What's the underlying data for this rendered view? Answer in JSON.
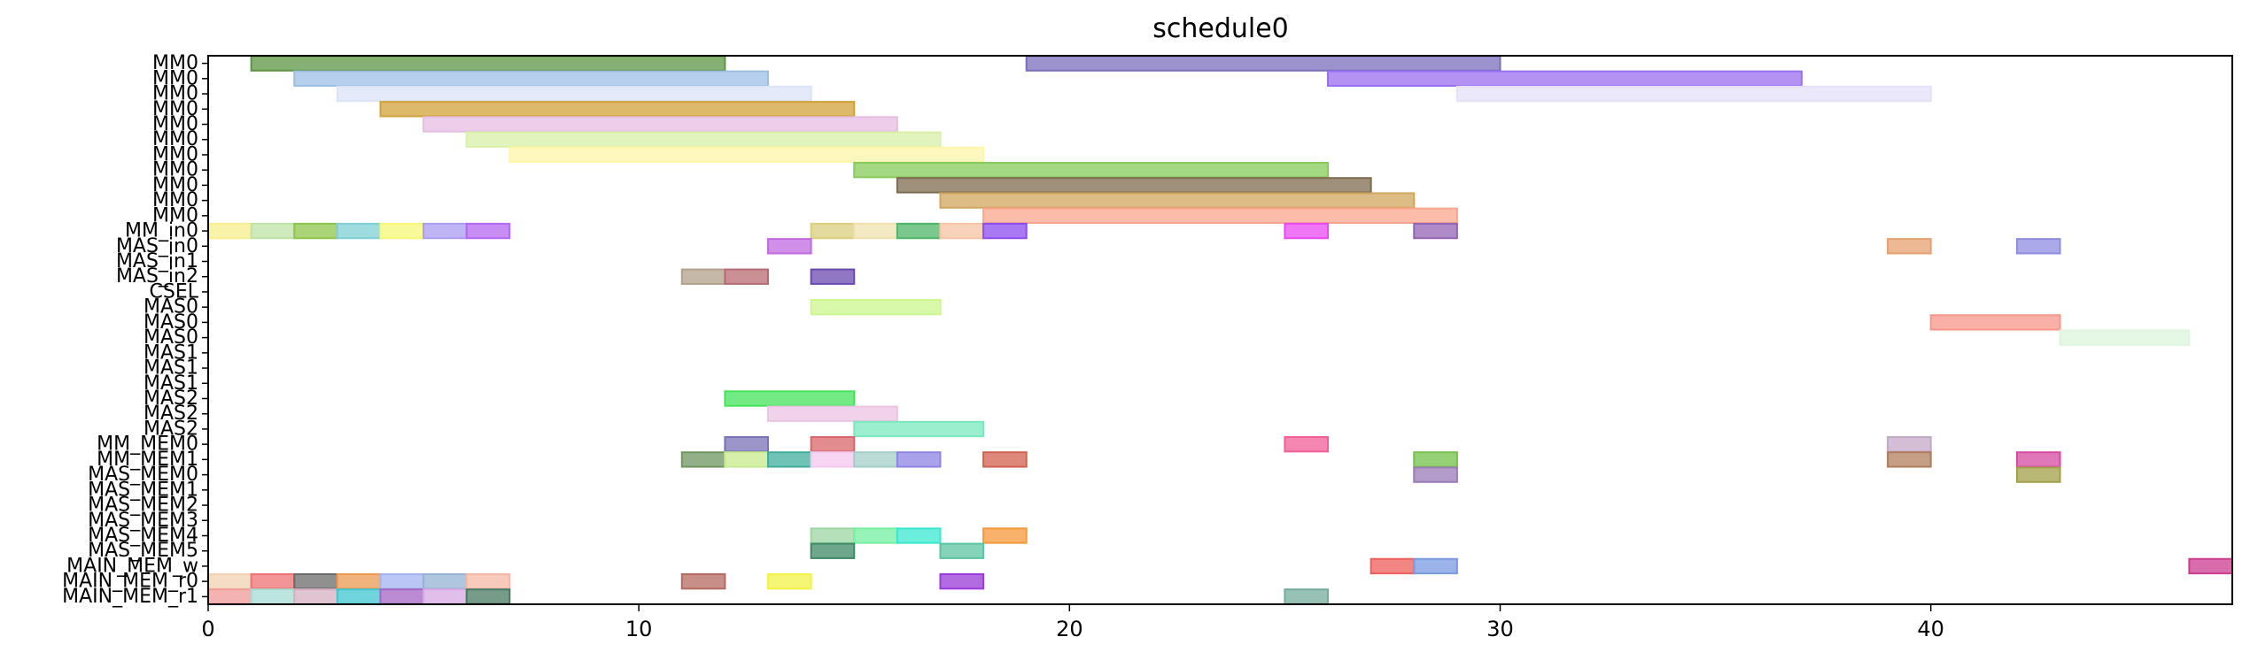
{
  "chart_data": {
    "type": "gantt",
    "title": "schedule0",
    "xlabel": "",
    "ylabel": "",
    "xlim": [
      0,
      47
    ],
    "xticks": [
      0,
      10,
      20,
      30,
      40
    ],
    "grid": false,
    "rows": [
      "MM0",
      "MM0",
      "MM0",
      "MM0",
      "MM0",
      "MM0",
      "MM0",
      "MM0",
      "MM0",
      "MM0",
      "MM0",
      "MM_in0",
      "MAS_in0",
      "MAS_in1",
      "MAS_in2",
      "CSEL",
      "MAS0",
      "MAS0",
      "MAS0",
      "MAS1",
      "MAS1",
      "MAS1",
      "MAS2",
      "MAS2",
      "MAS2",
      "MM_MEM0",
      "MM_MEM1",
      "MAS_MEM0",
      "MAS_MEM1",
      "MAS_MEM2",
      "MAS_MEM3",
      "MAS_MEM4",
      "MAS_MEM5",
      "MAIN_MEM_w",
      "MAIN_MEM_r0",
      "MAIN_MEM_r1"
    ],
    "tasks": [
      {
        "row": 0,
        "start": 1,
        "end": 12,
        "color": "#5e9444"
      },
      {
        "row": 0,
        "start": 19,
        "end": 30,
        "color": "#7a6ebd"
      },
      {
        "row": 1,
        "start": 2,
        "end": 13,
        "color": "#9cbfe6"
      },
      {
        "row": 1,
        "start": 26,
        "end": 37,
        "color": "#9a6ef0"
      },
      {
        "row": 2,
        "start": 3,
        "end": 14,
        "color": "#dbe3f7"
      },
      {
        "row": 2,
        "start": 29,
        "end": 40,
        "color": "#e3e0f8"
      },
      {
        "row": 3,
        "start": 4,
        "end": 15,
        "color": "#d1a23a"
      },
      {
        "row": 4,
        "start": 5,
        "end": 16,
        "color": "#e6bde3"
      },
      {
        "row": 5,
        "start": 6,
        "end": 17,
        "color": "#d8f0a8"
      },
      {
        "row": 6,
        "start": 7,
        "end": 18,
        "color": "#fff6a8"
      },
      {
        "row": 7,
        "start": 15,
        "end": 26,
        "color": "#86cc5a"
      },
      {
        "row": 8,
        "start": 16,
        "end": 27,
        "color": "#7d6b4f"
      },
      {
        "row": 9,
        "start": 17,
        "end": 28,
        "color": "#d2a55e"
      },
      {
        "row": 10,
        "start": 18,
        "end": 29,
        "color": "#fba58e"
      },
      {
        "row": 11,
        "start": 0,
        "end": 1,
        "color": "#f7ef8e"
      },
      {
        "row": 11,
        "start": 1,
        "end": 2,
        "color": "#bfe3a6"
      },
      {
        "row": 11,
        "start": 2,
        "end": 3,
        "color": "#8fc44a"
      },
      {
        "row": 11,
        "start": 3,
        "end": 4,
        "color": "#7fd0d6"
      },
      {
        "row": 11,
        "start": 4,
        "end": 5,
        "color": "#f6f777"
      },
      {
        "row": 11,
        "start": 5,
        "end": 6,
        "color": "#ab9cf0"
      },
      {
        "row": 11,
        "start": 6,
        "end": 7,
        "color": "#b467f2"
      },
      {
        "row": 11,
        "start": 14,
        "end": 15,
        "color": "#d9cf7c"
      },
      {
        "row": 11,
        "start": 15,
        "end": 16,
        "color": "#efe1ad"
      },
      {
        "row": 11,
        "start": 16,
        "end": 17,
        "color": "#4fb56a"
      },
      {
        "row": 11,
        "start": 17,
        "end": 18,
        "color": "#f7c3a4"
      },
      {
        "row": 11,
        "start": 18,
        "end": 19,
        "color": "#8c4cf0"
      },
      {
        "row": 11,
        "start": 25,
        "end": 26,
        "color": "#ea49f2"
      },
      {
        "row": 11,
        "start": 28,
        "end": 29,
        "color": "#9364b3"
      },
      {
        "row": 12,
        "start": 13,
        "end": 14,
        "color": "#c06ae0"
      },
      {
        "row": 12,
        "start": 39,
        "end": 40,
        "color": "#e6a170"
      },
      {
        "row": 12,
        "start": 42,
        "end": 43,
        "color": "#8f8de0"
      },
      {
        "row": 14,
        "start": 11,
        "end": 12,
        "color": "#b3a08a"
      },
      {
        "row": 14,
        "start": 12,
        "end": 13,
        "color": "#b86a72"
      },
      {
        "row": 14,
        "start": 14,
        "end": 15,
        "color": "#6a4ab0"
      },
      {
        "row": 16,
        "start": 14,
        "end": 17,
        "color": "#ccf78e"
      },
      {
        "row": 17,
        "start": 40,
        "end": 43,
        "color": "#f7968a"
      },
      {
        "row": 18,
        "start": 43,
        "end": 46,
        "color": "#dcf5dc"
      },
      {
        "row": 22,
        "start": 12,
        "end": 15,
        "color": "#44e35a"
      },
      {
        "row": 23,
        "start": 13,
        "end": 16,
        "color": "#ebc4e4"
      },
      {
        "row": 24,
        "start": 15,
        "end": 18,
        "color": "#7ae8bd"
      },
      {
        "row": 25,
        "start": 12,
        "end": 13,
        "color": "#7a72b8"
      },
      {
        "row": 25,
        "start": 14,
        "end": 15,
        "color": "#d9666a"
      },
      {
        "row": 25,
        "start": 25,
        "end": 26,
        "color": "#f25e98"
      },
      {
        "row": 25,
        "start": 39,
        "end": 40,
        "color": "#c4a8c8"
      },
      {
        "row": 26,
        "start": 11,
        "end": 12,
        "color": "#6e9660"
      },
      {
        "row": 26,
        "start": 12,
        "end": 13,
        "color": "#c8eb8e"
      },
      {
        "row": 26,
        "start": 13,
        "end": 14,
        "color": "#3fad9c"
      },
      {
        "row": 26,
        "start": 14,
        "end": 15,
        "color": "#f5c8ef"
      },
      {
        "row": 26,
        "start": 15,
        "end": 16,
        "color": "#a3cfc8"
      },
      {
        "row": 26,
        "start": 16,
        "end": 17,
        "color": "#8e84e6"
      },
      {
        "row": 26,
        "start": 18,
        "end": 19,
        "color": "#d2604e"
      },
      {
        "row": 26,
        "start": 28,
        "end": 29,
        "color": "#74c24a"
      },
      {
        "row": 26,
        "start": 39,
        "end": 40,
        "color": "#b07d5c"
      },
      {
        "row": 26,
        "start": 42,
        "end": 43,
        "color": "#d64aa0"
      },
      {
        "row": 27,
        "start": 28,
        "end": 29,
        "color": "#9a7ab8"
      },
      {
        "row": 27,
        "start": 42,
        "end": 43,
        "color": "#a3a04a"
      },
      {
        "row": 31,
        "start": 14,
        "end": 15,
        "color": "#9ed6a3"
      },
      {
        "row": 31,
        "start": 15,
        "end": 16,
        "color": "#73f0a0"
      },
      {
        "row": 31,
        "start": 16,
        "end": 17,
        "color": "#3ae8cf"
      },
      {
        "row": 31,
        "start": 18,
        "end": 19,
        "color": "#f5983a"
      },
      {
        "row": 32,
        "start": 14,
        "end": 15,
        "color": "#3f8a66"
      },
      {
        "row": 32,
        "start": 17,
        "end": 18,
        "color": "#5cc4a2"
      },
      {
        "row": 33,
        "start": 27,
        "end": 28,
        "color": "#ee5e5a"
      },
      {
        "row": 33,
        "start": 28,
        "end": 29,
        "color": "#7a9ae0"
      },
      {
        "row": 33,
        "start": 46,
        "end": 47,
        "color": "#cc3c90"
      },
      {
        "row": 34,
        "start": 0,
        "end": 1,
        "color": "#f0d2b2"
      },
      {
        "row": 34,
        "start": 1,
        "end": 2,
        "color": "#ef7274"
      },
      {
        "row": 34,
        "start": 2,
        "end": 3,
        "color": "#6b6b6b"
      },
      {
        "row": 34,
        "start": 3,
        "end": 4,
        "color": "#ec9a52"
      },
      {
        "row": 34,
        "start": 4,
        "end": 5,
        "color": "#a3b4f0"
      },
      {
        "row": 34,
        "start": 5,
        "end": 6,
        "color": "#95b3d3"
      },
      {
        "row": 34,
        "start": 6,
        "end": 7,
        "color": "#f4b8a6"
      },
      {
        "row": 34,
        "start": 11,
        "end": 12,
        "color": "#b46a60"
      },
      {
        "row": 34,
        "start": 13,
        "end": 14,
        "color": "#f2f248"
      },
      {
        "row": 34,
        "start": 17,
        "end": 18,
        "color": "#9a3ad8"
      },
      {
        "row": 35,
        "start": 0,
        "end": 1,
        "color": "#f09a9a"
      },
      {
        "row": 35,
        "start": 1,
        "end": 2,
        "color": "#a6dcd4"
      },
      {
        "row": 35,
        "start": 2,
        "end": 3,
        "color": "#d6b0c2"
      },
      {
        "row": 35,
        "start": 3,
        "end": 4,
        "color": "#3fc6cf"
      },
      {
        "row": 35,
        "start": 4,
        "end": 5,
        "color": "#a466c4"
      },
      {
        "row": 35,
        "start": 5,
        "end": 6,
        "color": "#d8a8e4"
      },
      {
        "row": 35,
        "start": 6,
        "end": 7,
        "color": "#4a7a62"
      },
      {
        "row": 35,
        "start": 25,
        "end": 26,
        "color": "#74ac9c"
      }
    ]
  }
}
